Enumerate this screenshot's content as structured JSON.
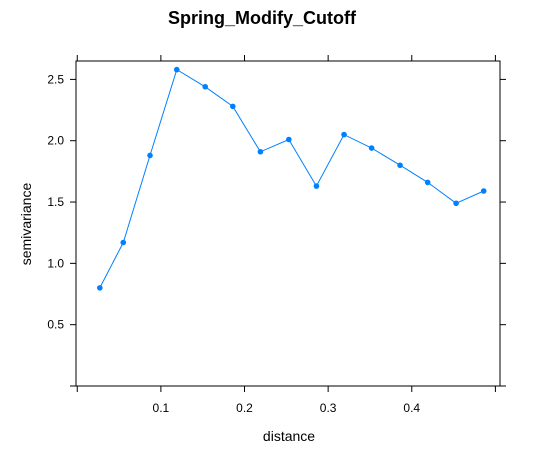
{
  "chart_data": {
    "type": "line",
    "title": "Spring_Modify_Cutoff",
    "xlabel": "distance",
    "ylabel": "semivariance",
    "xlim": [
      -0.0015,
      0.5055
    ],
    "ylim": [
      0,
      2.65
    ],
    "grid": false,
    "x_ticks": [
      {
        "value": 0.1,
        "label": "0.1"
      },
      {
        "value": 0.2,
        "label": "0.2"
      },
      {
        "value": 0.3,
        "label": "0.3"
      },
      {
        "value": 0.4,
        "label": "0.4"
      }
    ],
    "y_ticks": [
      {
        "value": 0.5,
        "label": "0.5"
      },
      {
        "value": 1.0,
        "label": "1.0"
      },
      {
        "value": 1.5,
        "label": "1.5"
      },
      {
        "value": 2.0,
        "label": "2.0"
      },
      {
        "value": 2.5,
        "label": "2.5"
      }
    ],
    "extra_x_ticks": [
      0.0,
      0.5
    ],
    "extra_y_ticks": [
      0.0
    ],
    "series": [
      {
        "color": "#0080ff",
        "points": [
          {
            "x": 0.027,
            "y": 0.8
          },
          {
            "x": 0.055,
            "y": 1.17
          },
          {
            "x": 0.087,
            "y": 1.88
          },
          {
            "x": 0.119,
            "y": 2.58
          },
          {
            "x": 0.153,
            "y": 2.44
          },
          {
            "x": 0.186,
            "y": 2.28
          },
          {
            "x": 0.219,
            "y": 1.91
          },
          {
            "x": 0.253,
            "y": 2.01
          },
          {
            "x": 0.286,
            "y": 1.63
          },
          {
            "x": 0.319,
            "y": 2.05
          },
          {
            "x": 0.352,
            "y": 1.94
          },
          {
            "x": 0.386,
            "y": 1.8
          },
          {
            "x": 0.419,
            "y": 1.66
          },
          {
            "x": 0.453,
            "y": 1.49
          },
          {
            "x": 0.486,
            "y": 1.59
          }
        ]
      }
    ]
  }
}
